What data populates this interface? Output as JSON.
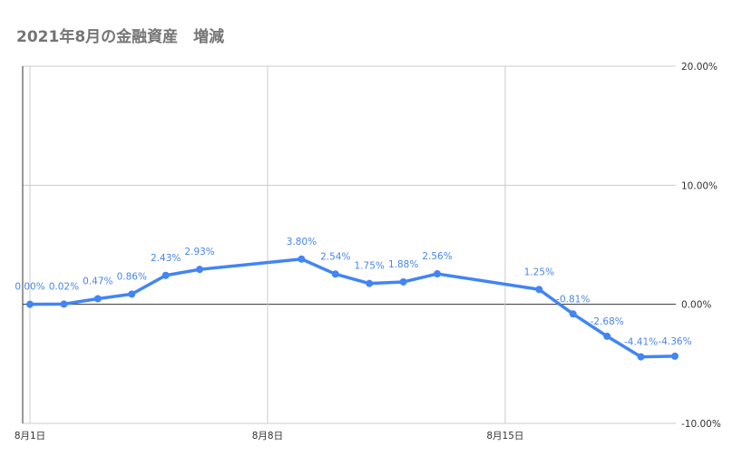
{
  "title": "2021年8月の金融資産　増減",
  "chart_data": {
    "type": "line",
    "title": "2021年8月の金融資産　増減",
    "xlabel": "",
    "ylabel": "",
    "color": "#4285f4",
    "label_color": "#4a86e8",
    "grid": true,
    "ylim": [
      -10,
      20
    ],
    "yticks": [
      20,
      10,
      0,
      -10
    ],
    "ytick_labels": [
      "20.00%",
      "10.00%",
      "0.00%",
      "-10.00%"
    ],
    "y_axis_side": "right",
    "xlim": [
      1,
      20
    ],
    "xticks": [
      1,
      8,
      15
    ],
    "xtick_labels": [
      "8月1日",
      "8月8日",
      "8月15日"
    ],
    "series": [
      {
        "x": [
          1,
          2,
          3,
          4,
          5,
          6,
          9,
          10,
          11,
          12,
          13,
          16,
          17,
          18,
          19,
          20
        ],
        "values": [
          0.0,
          0.02,
          0.47,
          0.86,
          2.43,
          2.93,
          3.8,
          2.54,
          1.75,
          1.88,
          2.56,
          1.25,
          -0.81,
          -2.68,
          -4.41,
          -4.36
        ],
        "labels": [
          "0.00%",
          "0.02%",
          "0.47%",
          "0.86%",
          "2.43%",
          "2.93%",
          "3.80%",
          "2.54%",
          "1.75%",
          "1.88%",
          "2.56%",
          "1.25%",
          "-0.81%",
          "-2.68%",
          "-4.41%",
          "-4.36%"
        ]
      }
    ]
  }
}
